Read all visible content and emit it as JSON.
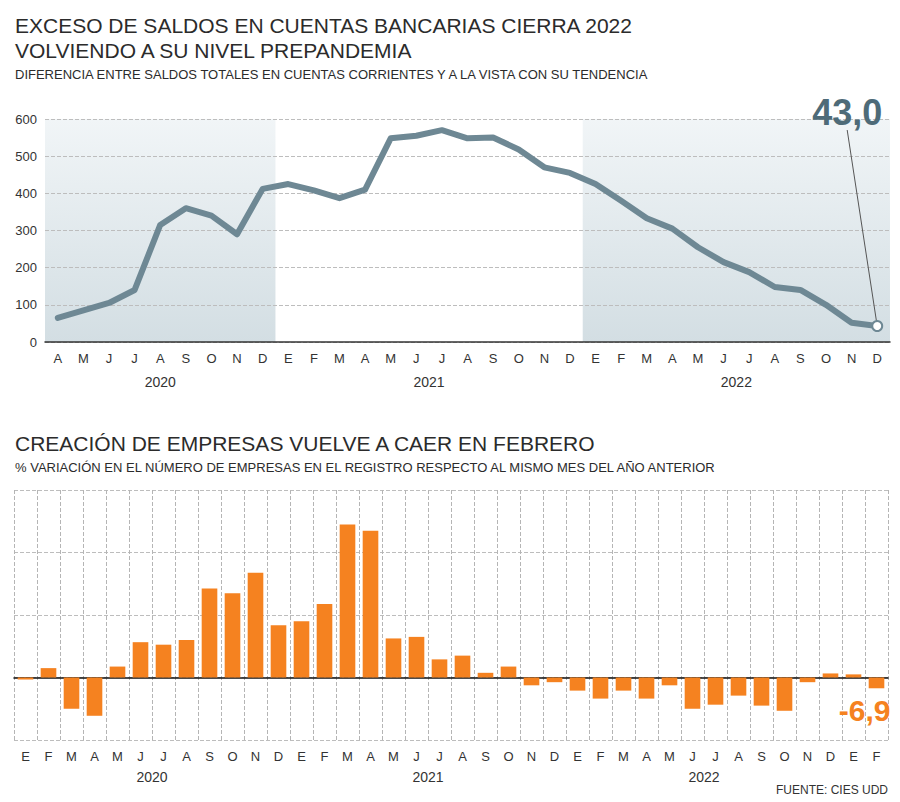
{
  "source": "FUENTE: CIES UDD",
  "chart_data": [
    {
      "type": "line",
      "title": "EXCESO DE SALDOS EN CUENTAS BANCARIAS CIERRA 2022\nVOLVIENDO A SU NIVEL PREPANDEMIA",
      "subtitle": "DIFERENCIA ENTRE SALDOS TOTALES EN CUENTAS CORRIENTES Y A LA VISTA CON SU TENDENCIA",
      "categories": [
        "A",
        "M",
        "J",
        "J",
        "A",
        "S",
        "O",
        "N",
        "D",
        "E",
        "F",
        "M",
        "A",
        "M",
        "J",
        "J",
        "A",
        "S",
        "O",
        "N",
        "D",
        "E",
        "F",
        "M",
        "A",
        "M",
        "J",
        "J",
        "A",
        "S",
        "O",
        "N",
        "D"
      ],
      "x_groups": [
        {
          "label": "2020",
          "count": 9
        },
        {
          "label": "2021",
          "count": 12
        },
        {
          "label": "2022",
          "count": 12
        }
      ],
      "values": [
        65,
        85,
        105,
        140,
        315,
        360,
        340,
        290,
        412,
        425,
        408,
        387,
        410,
        548,
        555,
        570,
        548,
        550,
        518,
        470,
        455,
        425,
        380,
        333,
        305,
        255,
        215,
        188,
        148,
        140,
        100,
        52,
        43
      ],
      "value_labels": [
        null,
        null,
        null,
        null,
        null,
        null,
        null,
        null,
        null,
        null,
        null,
        null,
        null,
        null,
        null,
        null,
        null,
        null,
        null,
        null,
        null,
        null,
        null,
        null,
        null,
        null,
        null,
        null,
        null,
        null,
        null,
        null,
        "43,0"
      ],
      "color": "#6e8894",
      "ylim": [
        0,
        600
      ],
      "yticks": [
        0,
        100,
        200,
        300,
        400,
        500,
        600
      ],
      "grid": true
    },
    {
      "type": "bar",
      "title": "CREACIÓN DE EMPRESAS VUELVE A CAER EN FEBRERO",
      "subtitle": "% VARIACIÓN EN EL NÚMERO DE EMPRESAS EN EL REGISTRO RESPECTO AL MISMO MES DEL AÑO ANTERIOR",
      "categories": [
        "E",
        "F",
        "M",
        "A",
        "M",
        "J",
        "J",
        "A",
        "S",
        "O",
        "N",
        "D",
        "E",
        "F",
        "M",
        "A",
        "M",
        "J",
        "J",
        "A",
        "S",
        "O",
        "N",
        "D",
        "E",
        "F",
        "M",
        "A",
        "M",
        "J",
        "J",
        "A",
        "S",
        "O",
        "N",
        "D",
        "E",
        "F"
      ],
      "x_groups": [
        {
          "label": "2020",
          "count": 12
        },
        {
          "label": "2021",
          "count": 12
        },
        {
          "label": "2022",
          "count": 12
        },
        {
          "label": null,
          "count": 2
        }
      ],
      "values": [
        -1.3,
        6,
        -20,
        -24.5,
        7,
        22.6,
        21,
        24,
        57,
        54,
        67,
        33.5,
        36,
        47,
        98,
        94,
        25,
        26,
        11.6,
        14,
        3,
        7,
        -5,
        -3,
        -8.4,
        -13.5,
        -8.4,
        -13.5,
        -5,
        -20,
        -17.4,
        -11.6,
        -18,
        -21.3,
        -3,
        2.6,
        2,
        -6.9
      ],
      "value_labels": [
        null,
        null,
        null,
        null,
        null,
        null,
        null,
        null,
        null,
        null,
        null,
        null,
        null,
        null,
        null,
        null,
        null,
        null,
        null,
        null,
        null,
        null,
        null,
        null,
        null,
        null,
        null,
        null,
        null,
        null,
        null,
        null,
        null,
        null,
        null,
        null,
        null,
        "-6,9"
      ],
      "color": "#f58220",
      "ylim": [
        -40,
        120
      ],
      "yticks": [
        -40,
        0,
        40,
        80,
        120
      ],
      "grid": true,
      "tick_labels": "x"
    }
  ]
}
